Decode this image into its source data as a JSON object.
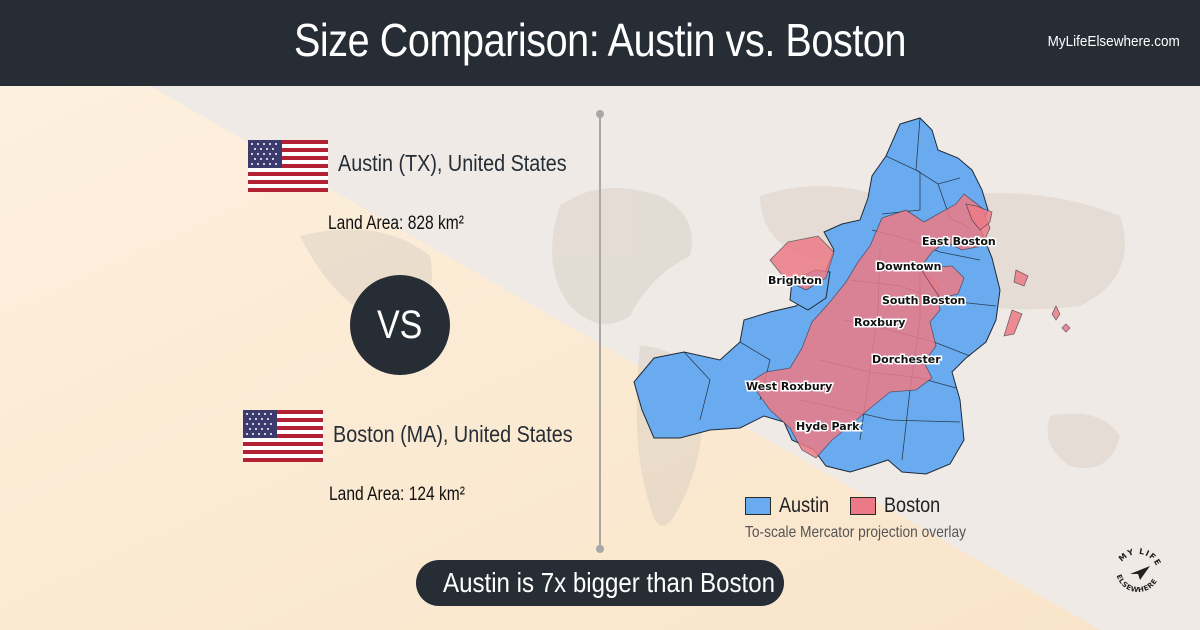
{
  "header": {
    "title": "Size Comparison: Austin vs. Boston",
    "site": "MyLifeElsewhere.com"
  },
  "city1": {
    "name": "Austin (TX), United States",
    "area": "Land Area: 828 km²",
    "flag": "us-flag-icon"
  },
  "city2": {
    "name": "Boston (MA), United States",
    "area": "Land Area: 124 km²",
    "flag": "us-flag-icon"
  },
  "vs_label": "VS",
  "map": {
    "neighborhoods": [
      "East Boston",
      "Downtown",
      "Brighton",
      "South Boston",
      "Roxbury",
      "Dorchester",
      "West Roxbury",
      "Hyde Park"
    ],
    "legend": [
      {
        "label": "Austin",
        "color": "#6aabf0"
      },
      {
        "label": "Boston",
        "color": "#ec7a86"
      }
    ],
    "note": "To-scale Mercator projection overlay"
  },
  "verdict": "Austin is 7x bigger than Boston",
  "logo": {
    "text": "MY LIFE ELSEWHERE",
    "icon": "paper-plane-icon"
  },
  "colors": {
    "dark": "#262d35",
    "austin": "#6aabf0",
    "boston": "#ec7a86",
    "flag_red": "#b22234",
    "flag_blue": "#3c3b6e"
  }
}
